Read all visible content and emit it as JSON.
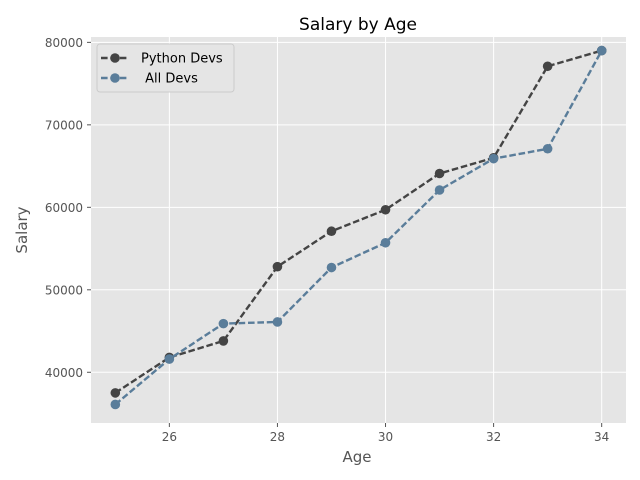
{
  "chart_data": {
    "type": "line",
    "title": "Salary by Age",
    "xlabel": "Age",
    "ylabel": "Salary",
    "x": [
      25,
      26,
      27,
      28,
      29,
      30,
      31,
      32,
      33,
      34
    ],
    "xlim": [
      24.55,
      34.45
    ],
    "ylim": [
      33850,
      80650
    ],
    "xticks": [
      26,
      28,
      30,
      32,
      34
    ],
    "yticks": [
      40000,
      50000,
      60000,
      70000,
      80000
    ],
    "grid": true,
    "style": "ggplot",
    "legend_position": "upper-left",
    "series": [
      {
        "name": "Python Devs",
        "color": "#444444",
        "line_style": "dashed",
        "marker": "circle",
        "values": [
          37500,
          41800,
          43800,
          52800,
          57100,
          59700,
          64100,
          66000,
          77100,
          79000
        ]
      },
      {
        "name": " All Devs",
        "color": "#5a7d9a",
        "line_style": "dashed",
        "marker": "circle",
        "values": [
          36100,
          41600,
          45900,
          46100,
          52700,
          55700,
          62100,
          65900,
          67100,
          79000
        ]
      }
    ]
  }
}
